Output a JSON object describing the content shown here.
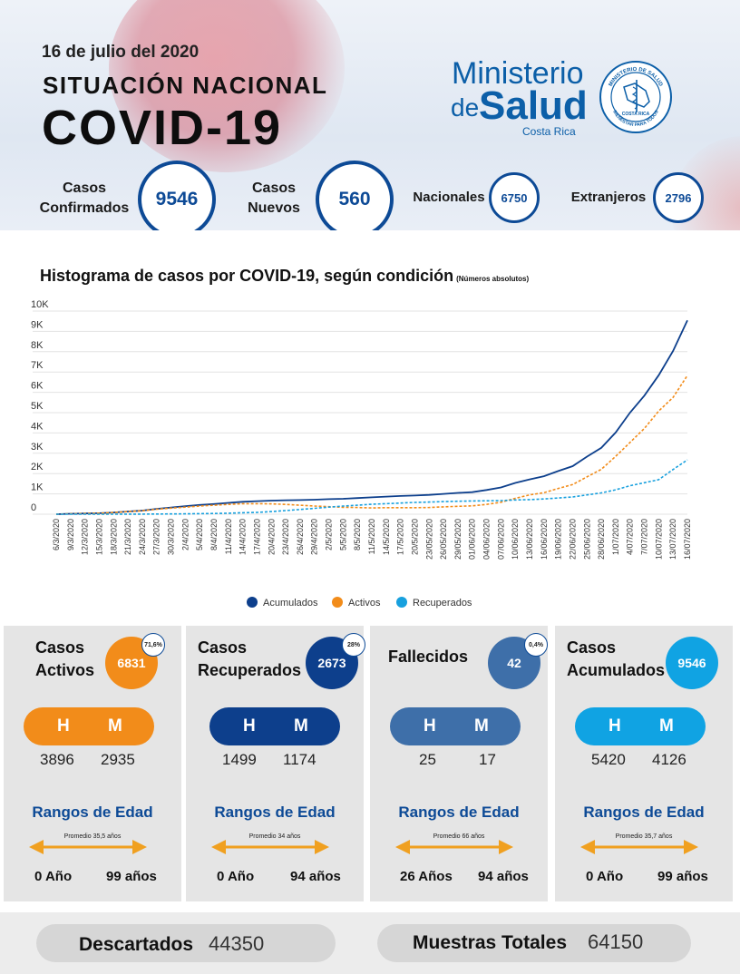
{
  "header": {
    "date": "16 de julio del 2020",
    "subtitle": "SITUACIÓN NACIONAL",
    "title": "COVID-19",
    "logo_line1": "Ministerio",
    "logo_line2a": "de",
    "logo_line2b": "Salud",
    "logo_line3": "Costa Rica",
    "seal_text_top": "MINISTERIO DE SALUD",
    "seal_text_bottom": "BIENESTAR PARA TODOS",
    "seal_text_mid": "COSTA RICA"
  },
  "stats": {
    "confirmados_label_1": "Casos",
    "confirmados_label_2": "Confirmados",
    "confirmados_value": "9546",
    "nuevos_label_1": "Casos",
    "nuevos_label_2": "Nuevos",
    "nuevos_value": "560",
    "nacionales_label": "Nacionales",
    "nacionales_value": "6750",
    "extranjeros_label": "Extranjeros",
    "extranjeros_value": "2796"
  },
  "chart_title": "Histograma de casos por COVID-19, según condición",
  "chart_note": "(Números absolutos)",
  "chart_data": {
    "type": "line",
    "title": "Histograma de casos por COVID-19, según condición",
    "x": [
      "6/3/2020",
      "9/3/2020",
      "12/3/2020",
      "15/3/2020",
      "18/3/2020",
      "21/3/2020",
      "24/3/2020",
      "27/3/2020",
      "30/3/2020",
      "2/4/2020",
      "5/4/2020",
      "8/4/2020",
      "11/4/2020",
      "14/4/2020",
      "17/4/2020",
      "20/4/2020",
      "23/4/2020",
      "26/4/2020",
      "29/4/2020",
      "2/5/2020",
      "5/5/2020",
      "8/5/2020",
      "11/5/2020",
      "14/5/2020",
      "17/5/2020",
      "20/5/2020",
      "23/05/2020",
      "26/05/2020",
      "29/05/2020",
      "01/06/2020",
      "04/06/2020",
      "07/06/2020",
      "10/06/2020",
      "13/06/2020",
      "16/06/2020",
      "19/06/2020",
      "22/06/2020",
      "25/06/2020",
      "28/06/2020",
      "1/07/2020",
      "4/07/2020",
      "7/07/2020",
      "10/07/2020",
      "13/07/2020",
      "16/07/2020"
    ],
    "y_ticks": [
      "0",
      "1K",
      "2K",
      "3K",
      "4K",
      "5K",
      "6K",
      "7K",
      "8K",
      "9K",
      "10K"
    ],
    "ylim": [
      0,
      10000
    ],
    "grid": true,
    "legend_position": "bottom",
    "series": [
      {
        "name": "Acumulados",
        "color": "#0d3f8c",
        "style": "solid",
        "values": [
          1,
          23,
          35,
          50,
          87,
          134,
          177,
          263,
          330,
          396,
          454,
          502,
          558,
          612,
          642,
          669,
          687,
          697,
          713,
          739,
          761,
          794,
          830,
          866,
          897,
          919,
          951,
          1000,
          1047,
          1084,
          1194,
          1318,
          1538,
          1715,
          1871,
          2127,
          2364,
          2836,
          3269,
          4023,
          5001,
          5836,
          6845,
          8036,
          9546
        ]
      },
      {
        "name": "Activos",
        "color": "#f28c1a",
        "style": "dashed",
        "values": [
          1,
          23,
          35,
          50,
          85,
          130,
          170,
          245,
          300,
          350,
          400,
          440,
          480,
          520,
          520,
          510,
          480,
          440,
          400,
          370,
          340,
          330,
          310,
          320,
          320,
          320,
          330,
          360,
          390,
          410,
          480,
          590,
          780,
          950,
          1060,
          1270,
          1460,
          1840,
          2210,
          2850,
          3530,
          4220,
          5080,
          5750,
          6831
        ]
      },
      {
        "name": "Recuperados",
        "color": "#17a0de",
        "style": "dashed",
        "values": [
          0,
          0,
          0,
          0,
          2,
          4,
          6,
          10,
          15,
          20,
          25,
          35,
          50,
          70,
          90,
          130,
          180,
          230,
          290,
          350,
          400,
          440,
          490,
          520,
          550,
          580,
          600,
          620,
          640,
          650,
          660,
          670,
          700,
          720,
          750,
          800,
          850,
          950,
          1050,
          1200,
          1400,
          1550,
          1700,
          2200,
          2673
        ]
      }
    ]
  },
  "cards": [
    {
      "label1": "Casos",
      "label2": "Activos",
      "value": "6831",
      "pct": "71,6%",
      "color": "#f28c1a",
      "h_label": "H",
      "m_label": "M",
      "h_value": "3896",
      "m_value": "2935",
      "rangos": "Rangos de Edad",
      "promedio": "Promedio 35,5 años",
      "age_min": "0 Año",
      "age_max": "99 años"
    },
    {
      "label1": "Casos",
      "label2": "Recuperados",
      "value": "2673",
      "pct": "28%",
      "color": "#0d3f8c",
      "h_label": "H",
      "m_label": "M",
      "h_value": "1499",
      "m_value": "1174",
      "rangos": "Rangos de Edad",
      "promedio": "Promedio 34 años",
      "age_min": "0 Año",
      "age_max": "94 años"
    },
    {
      "label1": "Fallecidos",
      "label2": "",
      "value": "42",
      "pct": "0,4%",
      "color": "#3e6fa9",
      "h_label": "H",
      "m_label": "M",
      "h_value": "25",
      "m_value": "17",
      "rangos": "Rangos de Edad",
      "promedio": "Promedio 66 años",
      "age_min": "26 Años",
      "age_max": "94 años"
    },
    {
      "label1": "Casos",
      "label2": "Acumulados",
      "value": "9546",
      "pct": "",
      "color": "#10a3e3",
      "h_label": "H",
      "m_label": "M",
      "h_value": "5420",
      "m_value": "4126",
      "rangos": "Rangos de Edad",
      "promedio": "Promedio 35,7 años",
      "age_min": "0 Año",
      "age_max": "99 años"
    }
  ],
  "footer": {
    "descartados_label": "Descartados",
    "descartados_value": "44350",
    "muestras_label": "Muestras Totales",
    "muestras_value": "64150"
  },
  "colors": {
    "accent_blue": "#0d4a96",
    "orange": "#f28c1a",
    "dark_blue": "#0d3f8c",
    "mid_blue": "#3e6fa9",
    "light_blue": "#10a3e3"
  }
}
